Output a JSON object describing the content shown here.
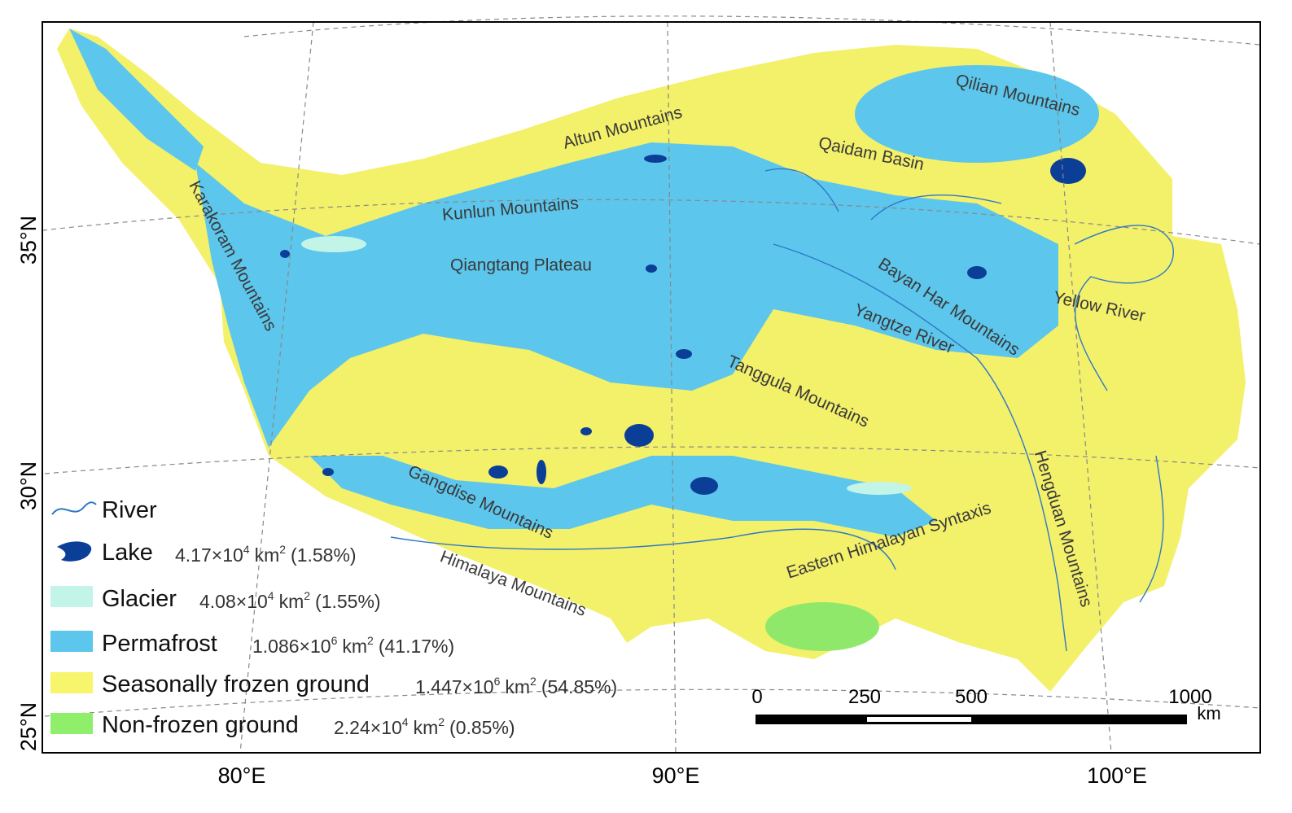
{
  "map": {
    "latitude_labels": [
      "35°N",
      "30°N",
      "25°N"
    ],
    "longitude_labels": [
      "80°E",
      "90°E",
      "100°E"
    ],
    "place_labels": [
      {
        "text": "Qilian Mountains"
      },
      {
        "text": "Altun Mountains"
      },
      {
        "text": "Qaidam Basin"
      },
      {
        "text": "Kunlun Mountains"
      },
      {
        "text": "Karakoram Mountains"
      },
      {
        "text": "Qiangtang Plateau"
      },
      {
        "text": "Bayan Har Mountains"
      },
      {
        "text": "Yangtze River"
      },
      {
        "text": "Yellow River"
      },
      {
        "text": "Tanggula Mountains"
      },
      {
        "text": "Hengduan Mountains"
      },
      {
        "text": "Gangdise Mountains"
      },
      {
        "text": "Himalaya Mountains"
      },
      {
        "text": "Eastern Himalayan Syntaxis"
      }
    ],
    "legend": [
      {
        "label": "River"
      },
      {
        "label": "Lake",
        "area_base": "4.17×10",
        "area_exp": "4",
        "unit": "km",
        "unit_exp": "2",
        "share": "(1.58%)"
      },
      {
        "label": "Glacier",
        "area_base": "4.08×10",
        "area_exp": "4",
        "unit": "km",
        "unit_exp": "2",
        "share": "(1.55%)"
      },
      {
        "label": "Permafrost",
        "area_base": "1.086×10",
        "area_exp": "6",
        "unit": "km",
        "unit_exp": "2",
        "share": "(41.17%)"
      },
      {
        "label": "Seasonally frozen ground",
        "area_base": "1.447×10",
        "area_exp": "6",
        "unit": "km",
        "unit_exp": "2",
        "share": "(54.85%)"
      },
      {
        "label": "Non-frozen ground",
        "area_base": "2.24×10",
        "area_exp": "4",
        "unit": "km",
        "unit_exp": "2",
        "share": "(0.85%)"
      }
    ],
    "scale_bar": {
      "ticks": [
        "0",
        "250",
        "500",
        "1000"
      ],
      "unit": "km"
    }
  }
}
